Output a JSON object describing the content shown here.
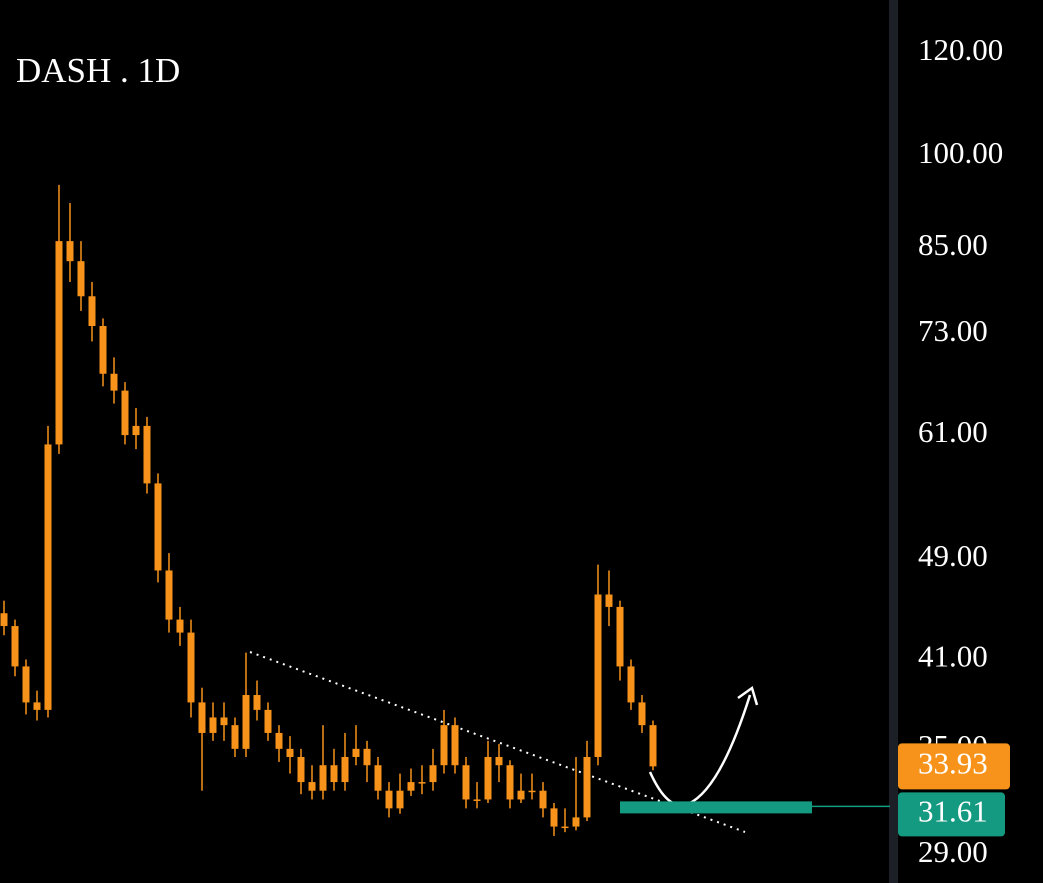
{
  "chart_data": {
    "type": "candlestick",
    "title": "DASH . 1D",
    "log_scale": true,
    "ylim": [
      27.6,
      131.8
    ],
    "yticks": [
      29,
      35,
      41,
      49,
      61,
      73,
      85,
      100,
      120
    ],
    "ytick_labels": [
      "29.00",
      "35.00",
      "41.00",
      "49.00",
      "61.00",
      "73.00",
      "85.00",
      "100.00",
      "120.00"
    ],
    "series": [
      {
        "color": "#f7931a",
        "open": [
          44.5,
          43.5,
          40.5,
          38,
          37.5,
          60,
          86,
          83,
          78,
          74,
          68,
          66,
          61,
          62,
          56,
          48,
          44,
          43,
          38,
          36,
          37,
          36.5,
          35,
          38.5,
          37.5,
          36,
          35,
          34.5,
          33,
          32.5,
          34,
          33,
          34.5,
          35,
          34,
          32.5,
          31.5,
          32.5,
          33,
          33,
          34,
          36.5,
          34,
          32,
          32,
          34.5,
          34,
          32,
          32.5,
          32.5,
          31.5,
          30.5,
          30.5,
          31,
          34.5,
          46,
          45,
          40.5,
          38,
          36.5
        ],
        "high": [
          45.5,
          44,
          41,
          38.8,
          62,
          95,
          92,
          86,
          80,
          75,
          70,
          67,
          64,
          63,
          57,
          49.5,
          45,
          44,
          39,
          38,
          38,
          37,
          41.5,
          39.5,
          38,
          36.5,
          35.8,
          35,
          34,
          36.5,
          35,
          36,
          36.5,
          35.5,
          34.5,
          33,
          33.5,
          33.8,
          34,
          35,
          37.5,
          37,
          34.5,
          33,
          35.5,
          35.3,
          34.3,
          33.5,
          33.5,
          33,
          31.8,
          31.5,
          34.5,
          35.5,
          48.5,
          48,
          45.5,
          41,
          38.5,
          36.8
        ],
        "low": [
          42.8,
          39.8,
          37.2,
          36.8,
          37,
          59,
          80,
          76,
          72,
          66.5,
          64.5,
          60,
          59.5,
          55,
          47,
          43,
          42,
          37,
          32.5,
          35.5,
          35.5,
          34.5,
          34.5,
          36.8,
          35.5,
          34.2,
          33.5,
          32.3,
          32,
          32,
          32.5,
          32.5,
          34,
          33,
          32,
          31,
          31.2,
          32.2,
          32.3,
          32.5,
          33.5,
          33.5,
          31.5,
          31.5,
          31.8,
          33,
          31.5,
          31.8,
          32,
          31,
          30,
          30.2,
          30.3,
          30.8,
          34,
          43.5,
          39.5,
          37.5,
          36,
          33.7
        ],
        "close": [
          43.5,
          40.5,
          38,
          37.5,
          60,
          86,
          83,
          78,
          74,
          68,
          66,
          61,
          62,
          56,
          48,
          44,
          43,
          38,
          36,
          37,
          36.5,
          35,
          38.5,
          37.5,
          36,
          35,
          34.5,
          33,
          32.5,
          34,
          33,
          34.5,
          35,
          34,
          32.5,
          31.5,
          32.5,
          33,
          33,
          34,
          36.5,
          34,
          32,
          32,
          34.5,
          34,
          32,
          32.5,
          32.5,
          31.5,
          30.5,
          30.5,
          31,
          34.5,
          46,
          45,
          40.5,
          38,
          36.5,
          33.93
        ]
      }
    ],
    "last_price": 33.93,
    "last_price_color": "#f7931a",
    "support_level": 31.61,
    "support_color": "#149a80"
  }
}
